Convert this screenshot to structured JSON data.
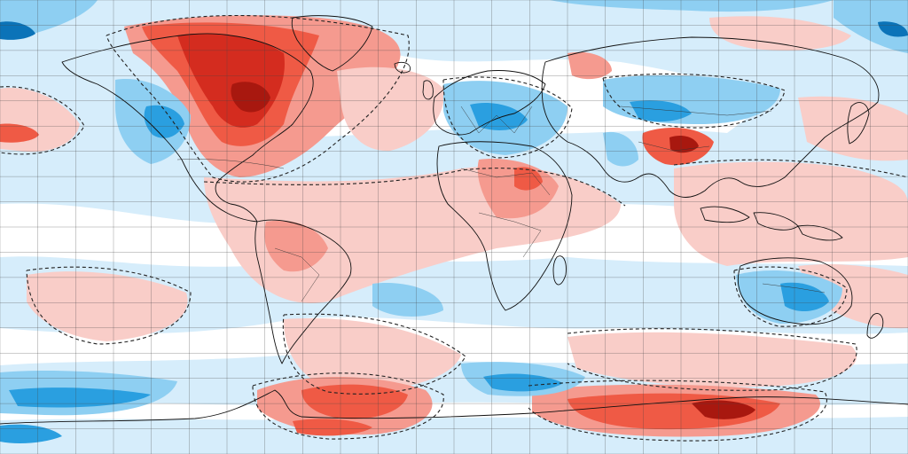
{
  "map": {
    "projection": "equirectangular",
    "grid": {
      "shown": true,
      "lon_step_deg": 15,
      "lat_step_deg": 10
    },
    "contour_style": "dashed zero line",
    "palette": {
      "neg3": "#0b73b8",
      "neg2": "#2a9fe0",
      "neg1": "#8ecff2",
      "neg0": "#d6edfb",
      "zero": "#ffffff",
      "pos0": "#f9cdc8",
      "pos1": "#f59a8f",
      "pos2": "#ef5a45",
      "pos3": "#d42c1f",
      "pos4": "#a8180f",
      "coast": "#111111",
      "grid": "#444444"
    },
    "icons": [
      "world-map",
      "coastline",
      "country-borders",
      "lat-lon-grid"
    ]
  }
}
